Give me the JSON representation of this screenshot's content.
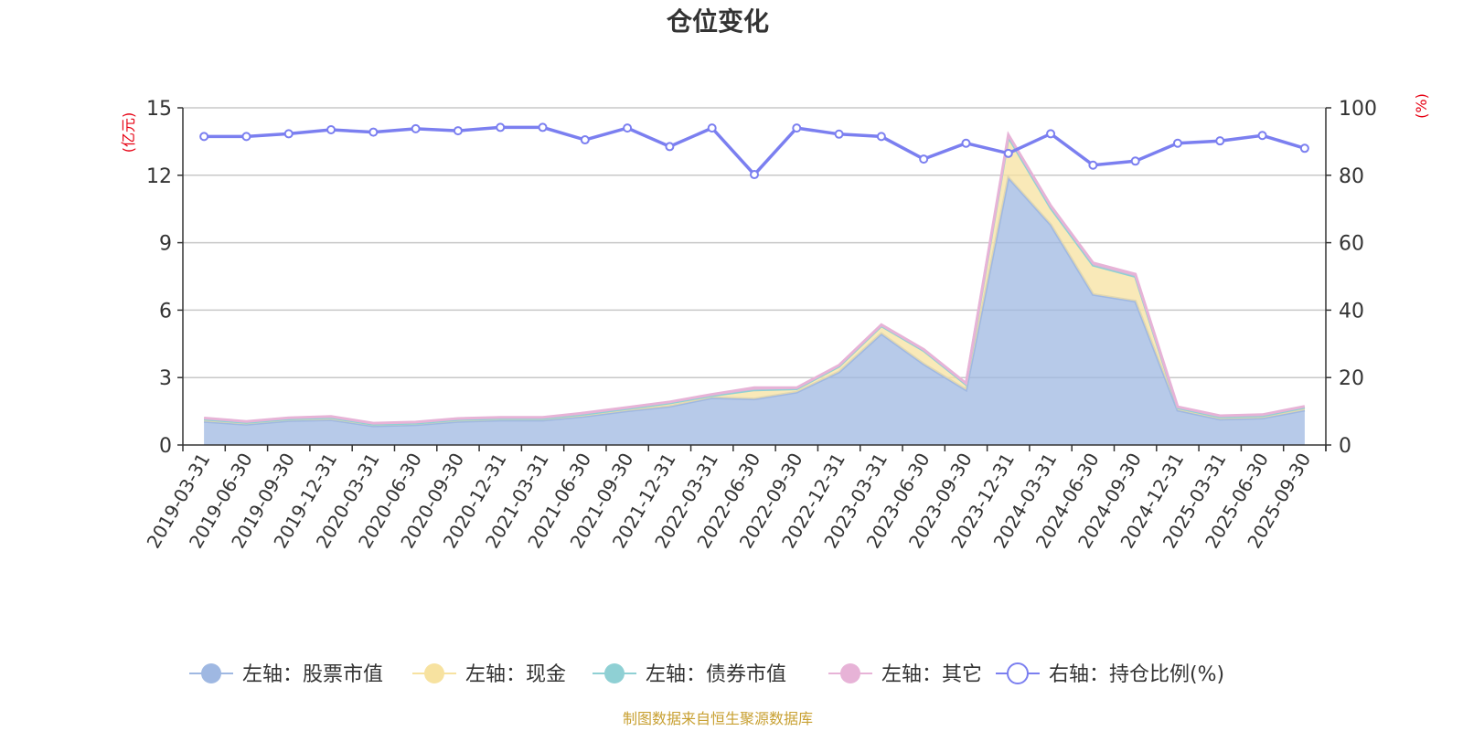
{
  "chart_data": {
    "type": "area",
    "title": "仓位变化",
    "left_unit": "(亿元)",
    "right_unit": "(%)",
    "x": [
      "2019-03-31",
      "2019-06-30",
      "2019-09-30",
      "2019-12-31",
      "2020-03-31",
      "2020-06-30",
      "2020-09-30",
      "2020-12-31",
      "2021-03-31",
      "2021-06-30",
      "2021-09-30",
      "2021-12-31",
      "2022-03-31",
      "2022-06-30",
      "2022-09-30",
      "2022-12-31",
      "2023-03-31",
      "2023-06-30",
      "2023-09-30",
      "2023-12-31",
      "2024-03-31",
      "2024-06-30",
      "2024-09-30",
      "2024-12-31",
      "2025-03-31",
      "2025-06-30",
      "2025-09-30"
    ],
    "left_ylim": [
      0,
      15
    ],
    "left_ticks": [
      "0",
      "3",
      "6",
      "9",
      "12",
      "15"
    ],
    "right_ylim": [
      0,
      100
    ],
    "right_ticks": [
      "0",
      "20",
      "40",
      "60",
      "80",
      "100"
    ],
    "grid": true,
    "legend_position": "bottom",
    "series": [
      {
        "name": "左轴：股票市值",
        "axis": "left",
        "stack": true,
        "color": "#9fb8e2",
        "values": [
          1.05,
          0.92,
          1.08,
          1.12,
          0.85,
          0.9,
          1.05,
          1.1,
          1.1,
          1.28,
          1.52,
          1.72,
          2.1,
          2.05,
          2.35,
          3.25,
          4.95,
          3.6,
          2.45,
          11.9,
          9.8,
          6.7,
          6.4,
          1.55,
          1.15,
          1.2,
          1.55
        ]
      },
      {
        "name": "左轴：现金",
        "axis": "left",
        "stack": true,
        "color": "#f7e2a0",
        "values": [
          0.1,
          0.08,
          0.08,
          0.1,
          0.07,
          0.07,
          0.08,
          0.08,
          0.08,
          0.1,
          0.1,
          0.15,
          0.1,
          0.4,
          0.15,
          0.25,
          0.35,
          0.6,
          0.25,
          1.8,
          0.75,
          1.3,
          1.1,
          0.1,
          0.1,
          0.1,
          0.12
        ]
      },
      {
        "name": "左轴：债券市值",
        "axis": "left",
        "stack": true,
        "color": "#8fd0d4",
        "values": [
          0,
          0,
          0,
          0,
          0,
          0,
          0,
          0,
          0,
          0,
          0,
          0,
          0,
          0,
          0,
          0,
          0,
          0,
          0,
          0,
          0,
          0,
          0,
          0,
          0,
          0,
          0
        ]
      },
      {
        "name": "左轴：其它",
        "axis": "left",
        "stack": true,
        "color": "#e7b3d7",
        "values": [
          0.05,
          0.05,
          0.05,
          0.05,
          0.05,
          0.05,
          0.05,
          0.05,
          0.05,
          0.05,
          0.05,
          0.05,
          0.05,
          0.1,
          0.05,
          0.05,
          0.05,
          0.05,
          0.05,
          0.1,
          0.1,
          0.1,
          0.1,
          0.05,
          0.05,
          0.05,
          0.05
        ]
      },
      {
        "name": "右轴：持仓比例(%)",
        "axis": "right",
        "stack": false,
        "color": "#7b7ff0",
        "values": [
          91.5,
          91.5,
          92.3,
          93.5,
          92.8,
          93.8,
          93.2,
          94.2,
          94.2,
          90.5,
          94,
          88.5,
          94,
          80.2,
          94,
          92.2,
          91.5,
          84.8,
          89.5,
          86.5,
          92.3,
          83,
          84.2,
          89.5,
          90.2,
          91.8,
          88
        ]
      }
    ]
  },
  "footer": {
    "source_text": "制图数据来自恒生聚源数据库"
  }
}
